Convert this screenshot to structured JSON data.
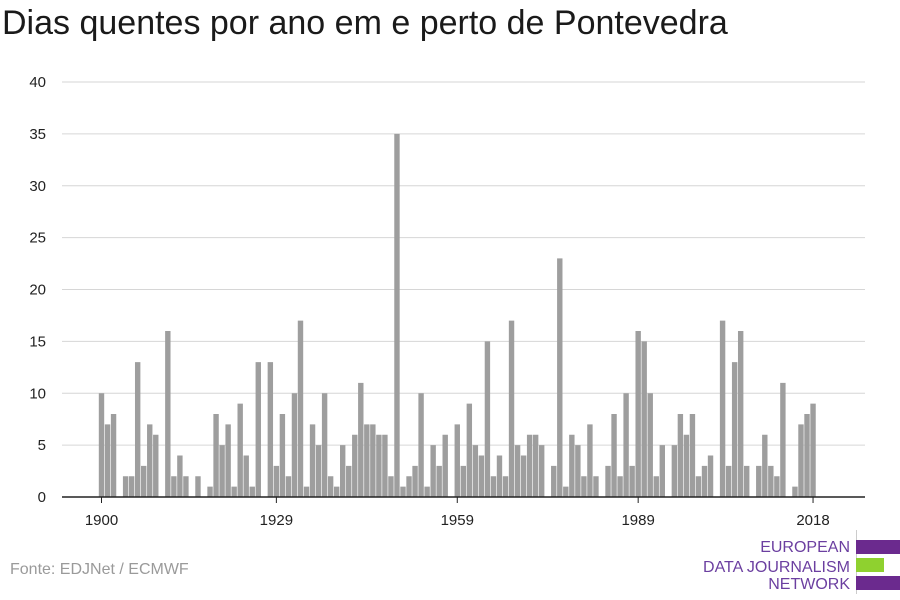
{
  "chart_data": {
    "type": "bar",
    "title": "Dias quentes por ano em e perto de Pontevedra",
    "xlabel": "",
    "ylabel": "",
    "ylim": [
      0,
      40
    ],
    "yticks": [
      0,
      5,
      10,
      15,
      20,
      25,
      30,
      35,
      40
    ],
    "xticks": [
      1900,
      1929,
      1959,
      1989,
      2018
    ],
    "grid": true,
    "x": [
      1900,
      1901,
      1902,
      1903,
      1904,
      1905,
      1906,
      1907,
      1908,
      1909,
      1910,
      1911,
      1912,
      1913,
      1914,
      1915,
      1916,
      1917,
      1918,
      1919,
      1920,
      1921,
      1922,
      1923,
      1924,
      1925,
      1926,
      1927,
      1928,
      1929,
      1930,
      1931,
      1932,
      1933,
      1934,
      1935,
      1936,
      1937,
      1938,
      1939,
      1940,
      1941,
      1942,
      1943,
      1944,
      1945,
      1946,
      1947,
      1948,
      1949,
      1950,
      1951,
      1952,
      1953,
      1954,
      1955,
      1956,
      1957,
      1958,
      1959,
      1960,
      1961,
      1962,
      1963,
      1964,
      1965,
      1966,
      1967,
      1968,
      1969,
      1970,
      1971,
      1972,
      1973,
      1974,
      1975,
      1976,
      1977,
      1978,
      1979,
      1980,
      1981,
      1982,
      1983,
      1984,
      1985,
      1986,
      1987,
      1988,
      1989,
      1990,
      1991,
      1992,
      1993,
      1994,
      1995,
      1996,
      1997,
      1998,
      1999,
      2000,
      2001,
      2002,
      2003,
      2004,
      2005,
      2006,
      2007,
      2008,
      2009,
      2010,
      2011,
      2012,
      2013,
      2014,
      2015,
      2016,
      2017,
      2018,
      2019
    ],
    "values": [
      10,
      7,
      8,
      0,
      2,
      2,
      13,
      3,
      7,
      6,
      0,
      16,
      2,
      4,
      2,
      0,
      2,
      0,
      1,
      8,
      5,
      7,
      1,
      9,
      4,
      1,
      13,
      0,
      13,
      3,
      8,
      2,
      10,
      17,
      1,
      7,
      5,
      10,
      2,
      1,
      5,
      3,
      6,
      11,
      7,
      7,
      6,
      6,
      2,
      35,
      1,
      2,
      3,
      10,
      1,
      5,
      3,
      6,
      0,
      7,
      3,
      9,
      5,
      4,
      15,
      2,
      4,
      2,
      17,
      5,
      4,
      6,
      6,
      5,
      0,
      3,
      23,
      1,
      6,
      5,
      2,
      7,
      2,
      0,
      3,
      8,
      2,
      10,
      3,
      16,
      15,
      10,
      2,
      5,
      0,
      5,
      8,
      6,
      8,
      2,
      3,
      4,
      0,
      17,
      3,
      13,
      16,
      3,
      0,
      3,
      6,
      3,
      2,
      11,
      0,
      1,
      7,
      8,
      9,
      0
    ]
  },
  "source": "Fonte: EDJNet / ECMWF",
  "logo": {
    "lines": [
      "EUROPEAN",
      "DATA JOURNALISM",
      "NETWORK"
    ],
    "colors": {
      "text": "#6b3fa0",
      "bar_purple": "#6b2a8e",
      "bar_green": "#8fd12f"
    }
  },
  "colors": {
    "bar": "#9e9e9e",
    "grid": "#d6d6d6",
    "axis": "#222222"
  }
}
